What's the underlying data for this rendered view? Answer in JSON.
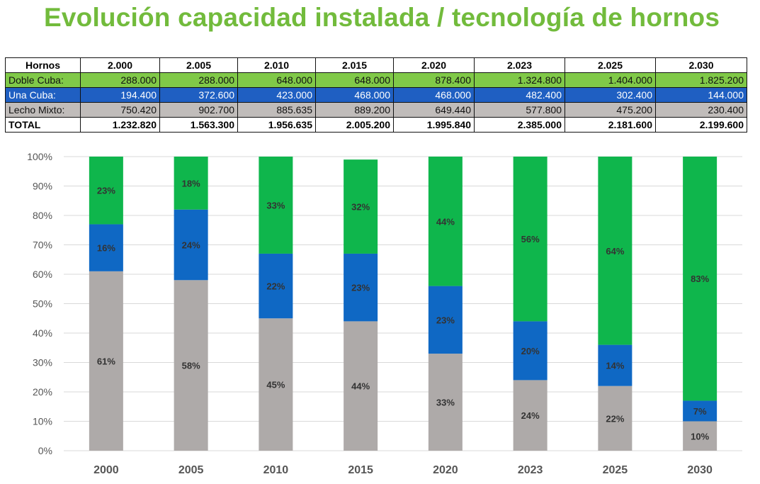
{
  "title": "Evolución capacidad instalada / tecnología de hornos",
  "table": {
    "header": [
      "Hornos",
      "2.000",
      "2.005",
      "2.010",
      "2.015",
      "2.020",
      "2.023",
      "2.025",
      "2.030"
    ],
    "rows": [
      {
        "label": "Doble Cuba:",
        "values": [
          "288.000",
          "288.000",
          "648.000",
          "648.000",
          "878.400",
          "1.324.800",
          "1.404.000",
          "1.825.200"
        ]
      },
      {
        "label": "Una Cuba:",
        "values": [
          "194.400",
          "372.600",
          "423.000",
          "468.000",
          "468.000",
          "482.400",
          "302.400",
          "144.000"
        ]
      },
      {
        "label": "Lecho Mixto:",
        "values": [
          "750.420",
          "902.700",
          "885.635",
          "889.200",
          "649.440",
          "577.800",
          "475.200",
          "230.400"
        ]
      },
      {
        "label": "TOTAL",
        "values": [
          "1.232.820",
          "1.563.300",
          "1.956.635",
          "2.005.200",
          "1.995.840",
          "2.385.000",
          "2.181.600",
          "2.199.600"
        ]
      }
    ]
  },
  "chart_data": {
    "type": "bar",
    "stacked": true,
    "percent": true,
    "categories": [
      "2000",
      "2005",
      "2010",
      "2015",
      "2020",
      "2023",
      "2025",
      "2030"
    ],
    "series": [
      {
        "name": "Lecho Mixto",
        "color": "#aeaaa9",
        "values": [
          61,
          58,
          45,
          44,
          33,
          24,
          22,
          10
        ]
      },
      {
        "name": "Una Cuba",
        "color": "#0f68c4",
        "values": [
          16,
          24,
          22,
          23,
          23,
          20,
          14,
          7
        ]
      },
      {
        "name": "Doble Cuba",
        "color": "#0fb64c",
        "values": [
          23,
          18,
          33,
          32,
          44,
          56,
          64,
          83
        ]
      }
    ],
    "y_ticks": [
      "0%",
      "10%",
      "20%",
      "30%",
      "40%",
      "50%",
      "60%",
      "70%",
      "80%",
      "90%",
      "100%"
    ],
    "ylim": [
      0,
      100
    ],
    "grid": true
  }
}
